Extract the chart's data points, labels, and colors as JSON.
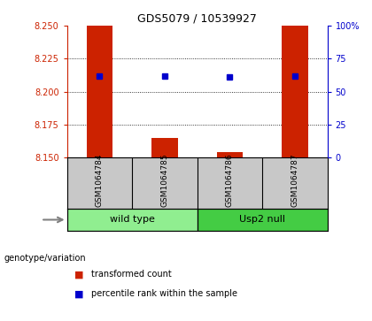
{
  "title": "GDS5079 / 10539927",
  "samples": [
    "GSM1064784",
    "GSM1064785",
    "GSM1064786",
    "GSM1064787"
  ],
  "transformed_counts": [
    8.25,
    8.165,
    8.154,
    8.25
  ],
  "percentile_ranks": [
    62,
    62,
    61,
    62
  ],
  "ylim_left": [
    8.15,
    8.25
  ],
  "ylim_right": [
    0,
    100
  ],
  "yticks_left": [
    8.15,
    8.175,
    8.2,
    8.225,
    8.25
  ],
  "yticks_right": [
    0,
    25,
    50,
    75,
    100
  ],
  "ytick_labels_right": [
    "0",
    "25",
    "50",
    "75",
    "100%"
  ],
  "groups": [
    {
      "label": "wild type",
      "indices": [
        0,
        1
      ],
      "color": "#90ee90"
    },
    {
      "label": "Usp2 null",
      "indices": [
        2,
        3
      ],
      "color": "#44cc44"
    }
  ],
  "bar_color": "#cc2200",
  "point_color": "#0000cc",
  "grid_color": "#000000",
  "bg_color": "#ffffff",
  "label_color_left": "#cc2200",
  "label_color_right": "#0000cc",
  "legend_items": [
    {
      "color": "#cc2200",
      "label": "transformed count"
    },
    {
      "color": "#0000cc",
      "label": "percentile rank within the sample"
    }
  ],
  "genotype_label": "genotype/variation",
  "bar_width": 0.4
}
